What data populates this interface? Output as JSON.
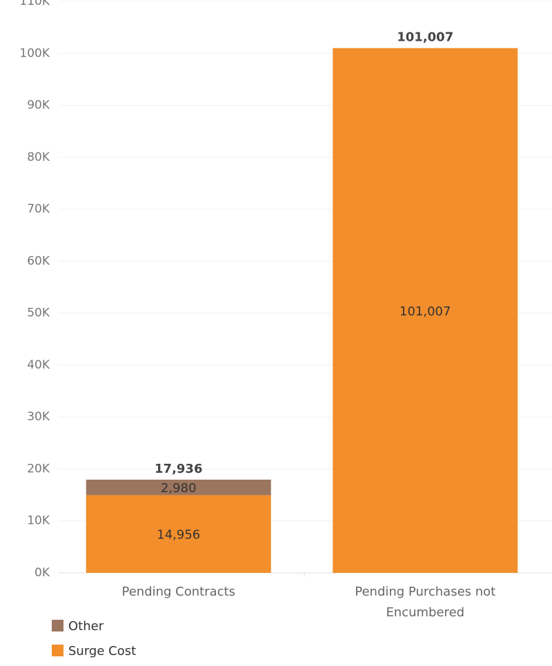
{
  "chart_data": {
    "type": "stacked_bar",
    "categories": [
      "Pending Contracts",
      "Pending Purchases not Encumbered"
    ],
    "series": [
      {
        "name": "Surge Cost",
        "color": "#f28e2b",
        "values": [
          14956,
          101007
        ],
        "value_labels": [
          "14,956",
          "101,007"
        ]
      },
      {
        "name": "Other",
        "color": "#9c755f",
        "values": [
          2980,
          null
        ],
        "value_labels": [
          "2,980",
          null
        ]
      }
    ],
    "totals": [
      17936,
      101007
    ],
    "total_labels": [
      "17,936",
      "101,007"
    ],
    "ylim": [
      0,
      110000
    ],
    "yticks": [
      {
        "value": 0,
        "label": "0K"
      },
      {
        "value": 10000,
        "label": "10K"
      },
      {
        "value": 20000,
        "label": "20K"
      },
      {
        "value": 30000,
        "label": "30K"
      },
      {
        "value": 40000,
        "label": "40K"
      },
      {
        "value": 50000,
        "label": "50K"
      },
      {
        "value": 60000,
        "label": "60K"
      },
      {
        "value": 70000,
        "label": "70K"
      },
      {
        "value": 80000,
        "label": "80K"
      },
      {
        "value": 90000,
        "label": "90K"
      },
      {
        "value": 100000,
        "label": "100K"
      },
      {
        "value": 110000,
        "label": "110K"
      }
    ],
    "grid": true
  }
}
